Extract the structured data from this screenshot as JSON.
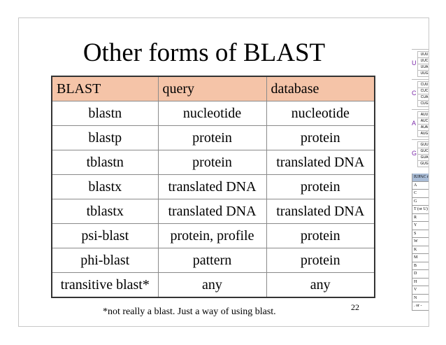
{
  "slide": {
    "title": "Other forms of BLAST",
    "table": {
      "headers": [
        "BLAST",
        "query",
        "database"
      ],
      "rows": [
        [
          "blastn",
          "nucleotide",
          "nucleotide"
        ],
        [
          "blastp",
          "protein",
          "protein"
        ],
        [
          "tblastn",
          "protein",
          "translated DNA"
        ],
        [
          "blastx",
          "translated DNA",
          "protein"
        ],
        [
          "tblastx",
          "translated DNA",
          "translated DNA"
        ],
        [
          "psi-blast",
          "protein, profile",
          "protein"
        ],
        [
          "phi-blast",
          "pattern",
          "protein"
        ],
        [
          "transitive blast*",
          "any",
          "any"
        ]
      ]
    },
    "footnote": "*not really a blast. Just a way of using blast.",
    "page_number": "22"
  },
  "side_panel": {
    "codon_groups": [
      {
        "letter": "U",
        "cells": [
          "UUU",
          "UUC",
          "UUA",
          "UUG"
        ]
      },
      {
        "letter": "C",
        "cells": [
          "CUU",
          "CUC",
          "CUA",
          "CUG"
        ]
      },
      {
        "letter": "A",
        "cells": [
          "AUU",
          "AUC",
          "AUA",
          "AUG"
        ]
      },
      {
        "letter": "G",
        "cells": [
          "GUU",
          "GUC",
          "GUA",
          "GUG"
        ]
      }
    ],
    "iupac_header": "IUPAC nuc",
    "iupac_codes": [
      "A",
      "C",
      "G",
      "T (or U)",
      "R",
      "Y",
      "S",
      "W",
      "K",
      "M",
      "B",
      "D",
      "H",
      "V",
      "N",
      ". or -"
    ]
  },
  "colors": {
    "header_fill": "#f5c4a8",
    "iupac_header_fill": "#a9bcd6"
  }
}
